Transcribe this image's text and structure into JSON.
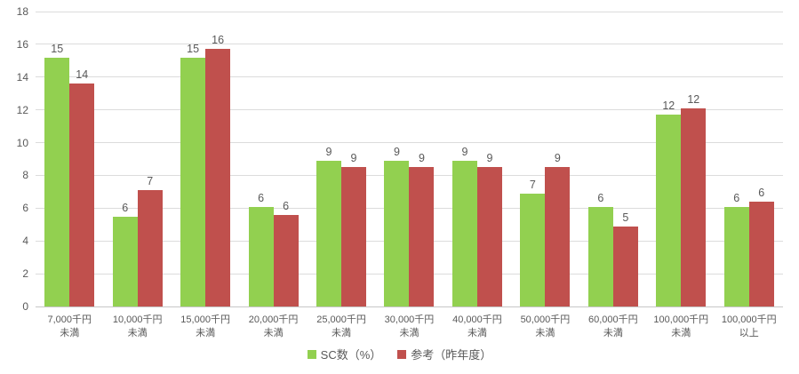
{
  "chart_data": {
    "type": "bar",
    "title": "",
    "xlabel": "",
    "ylabel": "",
    "grid": true,
    "legend_position": "bottom",
    "y_axis": {
      "min": 0,
      "max": 18,
      "ticks": [
        "0",
        "2",
        "4",
        "6",
        "8",
        "10",
        "12",
        "14",
        "16",
        "18"
      ]
    },
    "categories": [
      {
        "line1": "7,000千円",
        "line2": "未満"
      },
      {
        "line1": "10,000千円",
        "line2": "未満"
      },
      {
        "line1": "15,000千円",
        "line2": "未満"
      },
      {
        "line1": "20,000千円",
        "line2": "未満"
      },
      {
        "line1": "25,000千円",
        "line2": "未満"
      },
      {
        "line1": "30,000千円",
        "line2": "未満"
      },
      {
        "line1": "40,000千円",
        "line2": "未満"
      },
      {
        "line1": "50,000千円",
        "line2": "未満"
      },
      {
        "line1": "60,000千円",
        "line2": "未満"
      },
      {
        "line1": "100,000千円",
        "line2": "未満"
      },
      {
        "line1": "100,000千円",
        "line2": "以上"
      }
    ],
    "series": [
      {
        "name": "SC数（%）",
        "color": "#92d050",
        "values": [
          15.2,
          5.5,
          15.2,
          6.1,
          8.9,
          8.9,
          8.9,
          6.9,
          6.1,
          11.7,
          6.1
        ],
        "labels": [
          "15",
          "6",
          "15",
          "6",
          "9",
          "9",
          "9",
          "7",
          "6",
          "12",
          "6"
        ]
      },
      {
        "name": "参考（昨年度）",
        "color": "#c0504d",
        "values": [
          13.6,
          7.1,
          15.7,
          5.6,
          8.5,
          8.5,
          8.5,
          8.5,
          4.9,
          12.1,
          6.4
        ],
        "labels": [
          "14",
          "7",
          "16",
          "6",
          "9",
          "9",
          "9",
          "9",
          "5",
          "12",
          "6"
        ]
      }
    ]
  }
}
